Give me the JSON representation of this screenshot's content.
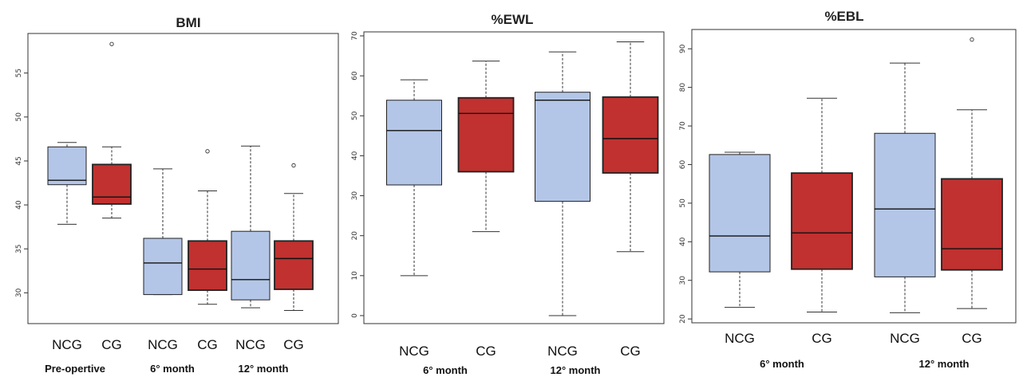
{
  "colors": {
    "ncg": "#b4c6e7",
    "cg": "#c0312f",
    "stroke": "#222222"
  },
  "chart_data": [
    {
      "type": "box",
      "title": "BMI",
      "ylim": [
        26.5,
        59.5
      ],
      "yticks": [
        30,
        35,
        40,
        45,
        50,
        55
      ],
      "grid": false,
      "categories": [
        "NCG",
        "CG",
        "NCG",
        "CG",
        "NCG",
        "CG"
      ],
      "groups": [
        "Pre-opertive",
        "6° month",
        "12° month"
      ],
      "boxes": [
        {
          "label": "NCG",
          "group": "ncg",
          "whisker_low": 37.8,
          "q1": 42.3,
          "median": 42.8,
          "q3": 46.6,
          "whisker_high": 47.1,
          "outliers": []
        },
        {
          "label": "CG",
          "group": "cg",
          "whisker_low": 38.5,
          "q1": 40.1,
          "median": 40.9,
          "q3": 44.6,
          "whisker_high": 46.6,
          "outliers": [
            58.3
          ]
        },
        {
          "label": "NCG",
          "group": "ncg",
          "whisker_low": 29.8,
          "q1": 29.8,
          "median": 33.4,
          "q3": 36.2,
          "whisker_high": 44.1,
          "outliers": []
        },
        {
          "label": "CG",
          "group": "cg",
          "whisker_low": 28.7,
          "q1": 30.3,
          "median": 32.7,
          "q3": 35.9,
          "whisker_high": 41.6,
          "outliers": [
            46.1
          ]
        },
        {
          "label": "NCG",
          "group": "ncg",
          "whisker_low": 28.3,
          "q1": 29.2,
          "median": 31.5,
          "q3": 37.0,
          "whisker_high": 46.7,
          "outliers": []
        },
        {
          "label": "CG",
          "group": "cg",
          "whisker_low": 28.0,
          "q1": 30.4,
          "median": 33.9,
          "q3": 35.9,
          "whisker_high": 41.3,
          "outliers": [
            44.5
          ]
        }
      ]
    },
    {
      "type": "box",
      "title": "%EWL",
      "ylim": [
        -2,
        71
      ],
      "yticks": [
        0,
        10,
        20,
        30,
        40,
        50,
        60,
        70
      ],
      "grid": false,
      "categories": [
        "NCG",
        "CG",
        "NCG",
        "CG"
      ],
      "groups": [
        "6° month",
        "12° month"
      ],
      "boxes": [
        {
          "label": "NCG",
          "group": "ncg",
          "whisker_low": 10.0,
          "q1": 32.7,
          "median": 46.3,
          "q3": 53.9,
          "whisker_high": 59.0,
          "outliers": []
        },
        {
          "label": "CG",
          "group": "cg",
          "whisker_low": 21.0,
          "q1": 36.0,
          "median": 50.6,
          "q3": 54.5,
          "whisker_high": 63.7,
          "outliers": []
        },
        {
          "label": "NCG",
          "group": "ncg",
          "whisker_low": 0.0,
          "q1": 28.6,
          "median": 53.9,
          "q3": 55.9,
          "whisker_high": 66.0,
          "outliers": []
        },
        {
          "label": "CG",
          "group": "cg",
          "whisker_low": 16.0,
          "q1": 35.7,
          "median": 44.3,
          "q3": 54.7,
          "whisker_high": 68.5,
          "outliers": []
        }
      ]
    },
    {
      "type": "box",
      "title": "%EBL",
      "ylim": [
        19,
        95
      ],
      "yticks": [
        20,
        30,
        40,
        50,
        60,
        70,
        80,
        90
      ],
      "grid": false,
      "categories": [
        "NCG",
        "CG",
        "NCG",
        "CG"
      ],
      "groups": [
        "6° month",
        "12° month"
      ],
      "boxes": [
        {
          "label": "NCG",
          "group": "ncg",
          "whisker_low": 23.0,
          "q1": 32.2,
          "median": 41.5,
          "q3": 62.6,
          "whisker_high": 63.2,
          "outliers": []
        },
        {
          "label": "CG",
          "group": "cg",
          "whisker_low": 21.8,
          "q1": 32.9,
          "median": 42.3,
          "q3": 57.8,
          "whisker_high": 77.2,
          "outliers": []
        },
        {
          "label": "NCG",
          "group": "ncg",
          "whisker_low": 21.6,
          "q1": 30.9,
          "median": 48.5,
          "q3": 68.1,
          "whisker_high": 86.3,
          "outliers": []
        },
        {
          "label": "CG",
          "group": "cg",
          "whisker_low": 22.7,
          "q1": 32.7,
          "median": 38.2,
          "q3": 56.3,
          "whisker_high": 74.2,
          "outliers": [
            92.4
          ]
        }
      ]
    }
  ]
}
